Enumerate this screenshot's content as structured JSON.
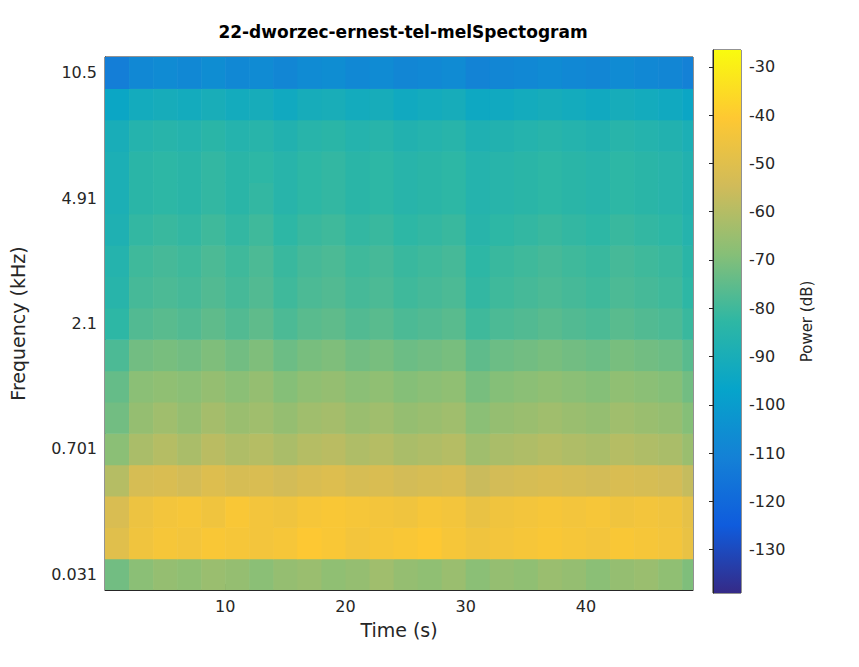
{
  "chart_data": {
    "type": "heatmap",
    "title": "22-dworzec-ernest-tel-melSpectogram",
    "x_label": "Time (s)",
    "y_label": "Frequency (kHz)",
    "x": [
      1,
      3,
      5,
      7,
      9,
      11,
      13,
      15,
      17,
      19,
      21,
      23,
      25,
      27,
      29,
      31,
      33,
      35,
      37,
      39,
      41,
      43,
      45,
      47,
      49
    ],
    "xlim": [
      0,
      48.9
    ],
    "xticks": [
      10,
      20,
      30,
      40
    ],
    "categories": [
      "0.031",
      null,
      null,
      null,
      "0.701",
      null,
      null,
      null,
      "2.1",
      null,
      null,
      null,
      "4.91",
      null,
      null,
      null,
      "10.5"
    ],
    "values": [
      [
        -72,
        -68,
        -66,
        -67,
        -65,
        -66,
        -68,
        -66,
        -65,
        -67,
        -66,
        -64,
        -66,
        -67,
        -65,
        -68,
        -66,
        -67,
        -65,
        -66,
        -68,
        -66,
        -65,
        -67,
        -70
      ],
      [
        -50,
        -45,
        -43,
        -44,
        -42,
        -43,
        -44,
        -43,
        -41,
        -42,
        -44,
        -43,
        -42,
        -41,
        -43,
        -45,
        -44,
        -43,
        -42,
        -43,
        -44,
        -42,
        -43,
        -44,
        -47
      ],
      [
        -52,
        -46,
        -44,
        -43,
        -45,
        -42,
        -44,
        -45,
        -43,
        -42,
        -43,
        -44,
        -45,
        -43,
        -44,
        -47,
        -45,
        -44,
        -43,
        -44,
        -43,
        -45,
        -44,
        -45,
        -48
      ],
      [
        -60,
        -53,
        -52,
        -54,
        -51,
        -53,
        -52,
        -54,
        -52,
        -51,
        -53,
        -52,
        -54,
        -53,
        -52,
        -56,
        -54,
        -53,
        -52,
        -53,
        -54,
        -52,
        -53,
        -54,
        -57
      ],
      [
        -68,
        -62,
        -60,
        -62,
        -59,
        -61,
        -60,
        -62,
        -60,
        -59,
        -61,
        -60,
        -62,
        -61,
        -60,
        -64,
        -62,
        -61,
        -60,
        -61,
        -62,
        -60,
        -61,
        -62,
        -65
      ],
      [
        -72,
        -66,
        -64,
        -66,
        -63,
        -65,
        -64,
        -66,
        -64,
        -63,
        -65,
        -64,
        -66,
        -65,
        -64,
        -68,
        -66,
        -65,
        -64,
        -65,
        -66,
        -64,
        -65,
        -66,
        -69
      ],
      [
        -74,
        -68,
        -67,
        -68,
        -66,
        -68,
        -66,
        -69,
        -67,
        -66,
        -68,
        -67,
        -69,
        -68,
        -67,
        -71,
        -69,
        -68,
        -67,
        -68,
        -69,
        -67,
        -68,
        -69,
        -72
      ],
      [
        -78,
        -72,
        -71,
        -72,
        -70,
        -72,
        -70,
        -73,
        -71,
        -70,
        -72,
        -71,
        -73,
        -72,
        -71,
        -75,
        -73,
        -72,
        -71,
        -72,
        -73,
        -71,
        -72,
        -73,
        -76
      ],
      [
        -83,
        -77,
        -76,
        -77,
        -75,
        -77,
        -75,
        -78,
        -76,
        -75,
        -77,
        -76,
        -78,
        -77,
        -76,
        -80,
        -78,
        -77,
        -76,
        -77,
        -78,
        -76,
        -77,
        -78,
        -81
      ],
      [
        -85,
        -79,
        -78,
        -79,
        -77,
        -79,
        -77,
        -80,
        -78,
        -77,
        -79,
        -78,
        -80,
        -79,
        -78,
        -82,
        -80,
        -79,
        -78,
        -79,
        -80,
        -78,
        -79,
        -80,
        -83
      ],
      [
        -86,
        -80,
        -79,
        -80,
        -78,
        -80,
        -78,
        -81,
        -79,
        -78,
        -80,
        -79,
        -81,
        -80,
        -79,
        -83,
        -81,
        -80,
        -79,
        -80,
        -81,
        -79,
        -80,
        -81,
        -84
      ],
      [
        -88,
        -82,
        -81,
        -82,
        -80,
        -82,
        -80,
        -83,
        -81,
        -80,
        -82,
        -81,
        -83,
        -82,
        -81,
        -85,
        -83,
        -82,
        -81,
        -82,
        -83,
        -81,
        -82,
        -83,
        -86
      ],
      [
        -89,
        -84,
        -83,
        -84,
        -82,
        -84,
        -82,
        -85,
        -83,
        -82,
        -84,
        -83,
        -85,
        -84,
        -83,
        -86,
        -85,
        -84,
        -83,
        -84,
        -85,
        -83,
        -84,
        -85,
        -87
      ],
      [
        -89,
        -84,
        -83,
        -84,
        -82,
        -84,
        -83,
        -85,
        -83,
        -82,
        -84,
        -83,
        -85,
        -84,
        -83,
        -86,
        -85,
        -84,
        -83,
        -84,
        -85,
        -83,
        -84,
        -85,
        -87
      ],
      [
        -90,
        -86,
        -85,
        -86,
        -84,
        -86,
        -85,
        -87,
        -85,
        -84,
        -86,
        -85,
        -87,
        -86,
        -85,
        -88,
        -87,
        -86,
        -85,
        -86,
        -87,
        -85,
        -86,
        -87,
        -89
      ],
      [
        -95,
        -92,
        -91,
        -92,
        -90,
        -92,
        -91,
        -93,
        -91,
        -90,
        -92,
        -91,
        -93,
        -92,
        -91,
        -94,
        -93,
        -92,
        -91,
        -92,
        -93,
        -91,
        -92,
        -93,
        -95
      ],
      [
        -112,
        -108,
        -107,
        -108,
        -106,
        -108,
        -107,
        -109,
        -107,
        -106,
        -108,
        -107,
        -109,
        -108,
        -107,
        -110,
        -109,
        -108,
        -107,
        -108,
        -109,
        -107,
        -108,
        -109,
        -111
      ]
    ],
    "colorbar_label": "Power (dB)",
    "clim": [
      -139,
      -26.5
    ],
    "cticks": [
      -30,
      -40,
      -50,
      -60,
      -70,
      -80,
      -90,
      -100,
      -110,
      -120,
      -130
    ]
  }
}
